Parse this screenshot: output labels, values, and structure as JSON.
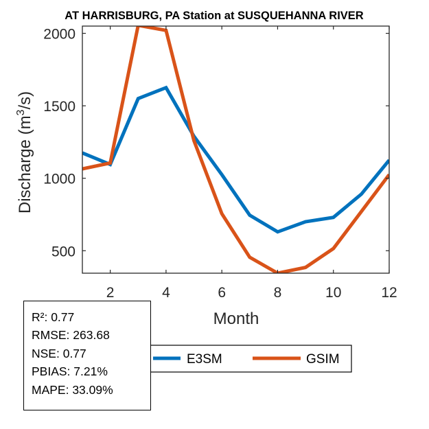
{
  "chart_data": {
    "type": "line",
    "title": "AT HARRISBURG, PA  Station at  SUSQUEHANNA RIVER",
    "xlabel": "Month",
    "ylabel_main": "Discharge (m",
    "ylabel_sup": "3",
    "ylabel_tail": "/s)",
    "xlim": [
      1,
      12
    ],
    "ylim": [
      345,
      2050
    ],
    "xticks": [
      2,
      4,
      6,
      8,
      10,
      12
    ],
    "yticks": [
      500,
      1000,
      1500,
      2000
    ],
    "x": [
      1,
      2,
      3,
      4,
      5,
      6,
      7,
      8,
      9,
      10,
      11,
      12
    ],
    "series": [
      {
        "name": "E3SM",
        "color": "#0072BD",
        "values": [
          1175,
          1095,
          1550,
          1625,
          1290,
          1025,
          745,
          630,
          700,
          730,
          890,
          1125
        ]
      },
      {
        "name": "GSIM",
        "color": "#D95319",
        "values": [
          1065,
          1105,
          2055,
          2020,
          1260,
          755,
          455,
          345,
          385,
          515,
          770,
          1025
        ]
      }
    ],
    "legend": "bottom-center",
    "grid": false
  },
  "stats": [
    "R²: 0.77",
    "RMSE: 263.68",
    "NSE: 0.77",
    "PBIAS: 7.21%",
    "MAPE: 33.09%"
  ]
}
